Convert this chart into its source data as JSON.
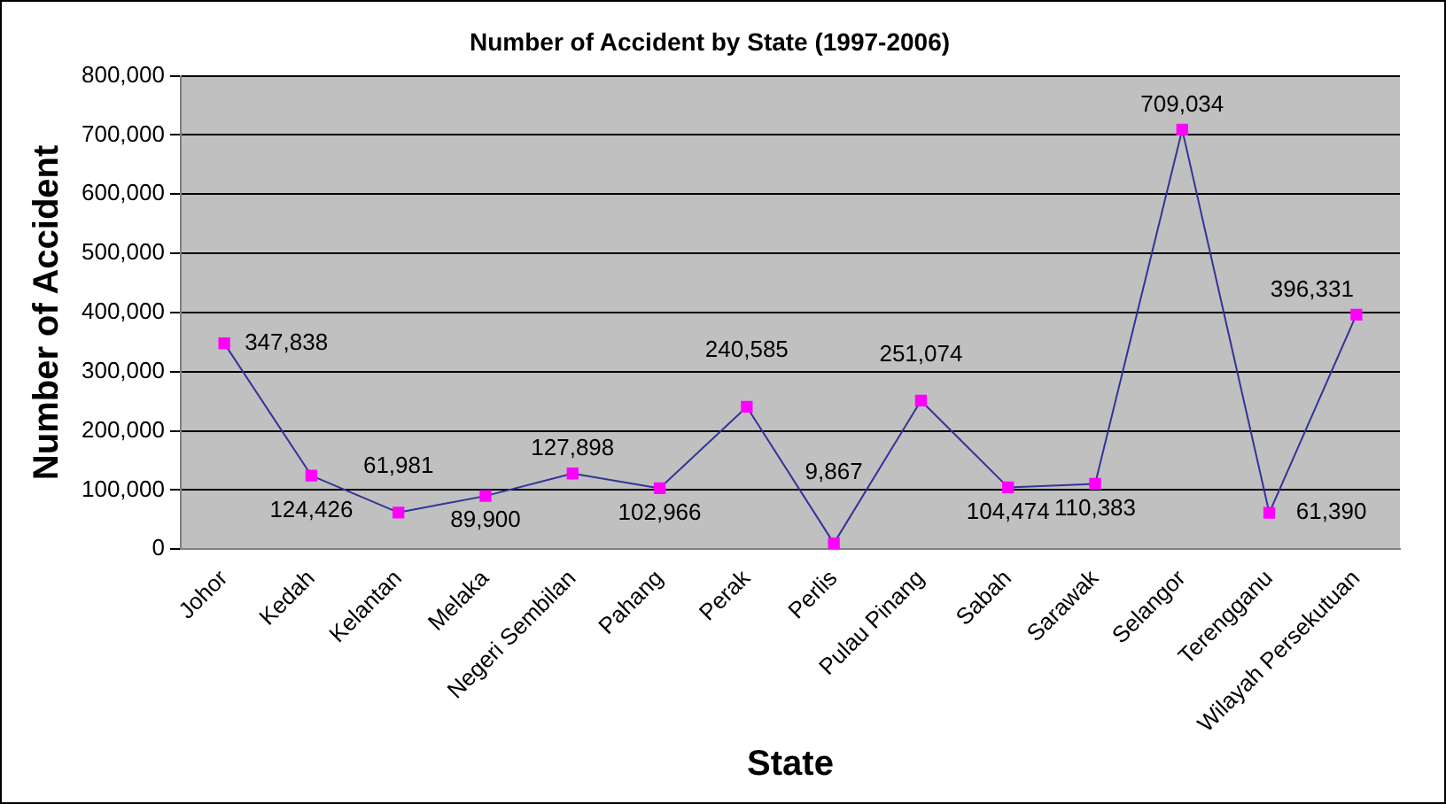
{
  "chart_data": {
    "type": "line",
    "title": "Number of Accident by State (1997-2006)",
    "xlabel": "State",
    "ylabel": "Number of Accident",
    "categories": [
      "Johor",
      "Kedah",
      "Kelantan",
      "Melaka",
      "Negeri Sembilan",
      "Pahang",
      "Perak",
      "Perlis",
      "Pulau Pinang",
      "Sabah",
      "Sarawak",
      "Selangor",
      "Terengganu",
      "Wilayah Persekutuan"
    ],
    "series": [
      {
        "color": "#333399",
        "values": [
          347838,
          124426,
          61981,
          89900,
          127898,
          102966,
          240585,
          9867,
          251074,
          104474,
          110383,
          709034,
          61390,
          396331
        ],
        "value_labels": [
          "347,838",
          "124,426",
          "61,981",
          "89,900",
          "127,898",
          "102,966",
          "240,585",
          "9,867",
          "251,074",
          "104,474",
          "110,383",
          "709,034",
          "61,390",
          "396,331"
        ]
      }
    ],
    "ylim": [
      0,
      800000
    ],
    "yticks": [
      {
        "value": 0,
        "label": "0"
      },
      {
        "value": 100000,
        "label": "100,000"
      },
      {
        "value": 200000,
        "label": "200,000"
      },
      {
        "value": 300000,
        "label": "300,000"
      },
      {
        "value": 400000,
        "label": "400,000"
      },
      {
        "value": 500000,
        "label": "500,000"
      },
      {
        "value": 600000,
        "label": "600,000"
      },
      {
        "value": 700000,
        "label": "700,000"
      },
      {
        "value": 800000,
        "label": "800,000"
      }
    ],
    "grid": "y",
    "legend": false,
    "marker": "square",
    "line_style": "solid"
  }
}
